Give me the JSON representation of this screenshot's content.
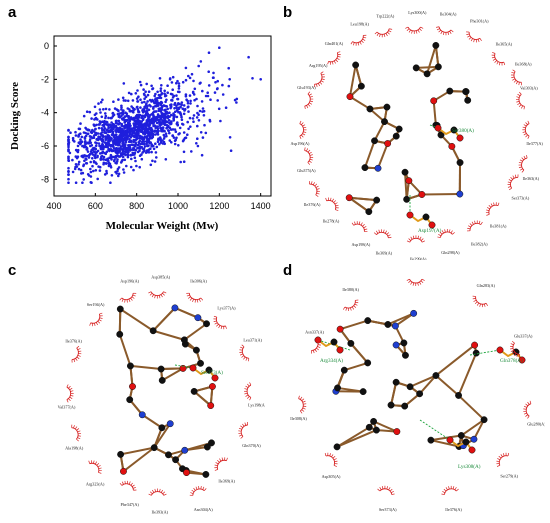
{
  "panels": {
    "a": {
      "label": "a"
    },
    "b": {
      "label": "b",
      "hbond": [
        "Ser380(A)",
        "Asp197(A)"
      ],
      "residues": [
        "Lys300(A)",
        "Ile304(A)",
        "Phe301(A)",
        "Ile365(A)",
        "Ile368(A)",
        "Val303(A)",
        "Ile377(A)",
        "Ile363(A)",
        "Ser373(A)",
        "Ile381(A)",
        "Ile382(A)",
        "Gln298(A)",
        "Ile299(A)",
        "Ile369(A)",
        "Asp198(A)",
        "Ile278(A)",
        "Ile376(A)",
        "Glu375(A)",
        "Asp196(A)",
        "Glu193(A)",
        "Arg195(A)",
        "Gln401(A)",
        "Leu198(A)",
        "Trp222(A)"
      ]
    },
    "c": {
      "label": "c",
      "hbond": [
        "Ser373(A)"
      ],
      "residues": [
        "Asp385(A)",
        "Ile306(A)",
        "Lys377(A)",
        "Leu371(A)",
        "Lys198(A)",
        "Gln370(A)",
        "Ile369(A)",
        "Asn304(A)",
        "Ile393(A)",
        "Phe347(A)",
        "Arg323(A)",
        "Ala198(A)",
        "Val377(A)",
        "Ile376(A)",
        "Ser194(A)",
        "Asp196(A)"
      ]
    },
    "d": {
      "label": "d",
      "hbond": [
        "Arg334(A)",
        "Gln378(A)",
        "Lys308(A)"
      ],
      "residues": [
        "Arg196(A)",
        "Gln283(A)",
        "Glu337(A)",
        "Glu280(A)",
        "Ser279(A)",
        "Ile376(A)",
        "Ser373(A)",
        "Asp305(A)",
        "Ile308(A)",
        "Asn337(A)",
        "Ile380(A)"
      ]
    }
  },
  "chart_data": {
    "type": "scatter",
    "xlabel": "Molecular Weight (Mw)",
    "ylabel": "Docking Score",
    "xlim": [
      400,
      1450
    ],
    "ylim": [
      -9,
      0.6
    ],
    "xticks": [
      "400",
      "600",
      "800",
      "1000",
      "1200",
      "1400"
    ],
    "yticks": [
      "0",
      "-2",
      "-4",
      "-6",
      "-8"
    ],
    "xtick_values": [
      400,
      600,
      800,
      1000,
      1200,
      1400
    ],
    "ytick_values": [
      0,
      -2,
      -4,
      -6,
      -8
    ],
    "point_color": "#1f1fdc",
    "n_points": 1500,
    "trend": {
      "slope": 0.0048,
      "intercept": -8.9,
      "mw_mean": 760,
      "mw_sd": 140
    },
    "x": [
      480,
      520,
      560,
      600,
      640,
      700,
      750,
      800,
      850,
      900,
      950,
      1000,
      1050,
      1100,
      1150,
      1200,
      1250,
      1400
    ],
    "y": [
      -5.2,
      -5.8,
      -6.2,
      -5.0,
      -6.8,
      -4.5,
      -7.2,
      -5.1,
      -3.9,
      -4.3,
      -2.8,
      -3.5,
      -1.8,
      -1.2,
      -0.4,
      -0.1,
      -2.0,
      -2.0
    ]
  }
}
